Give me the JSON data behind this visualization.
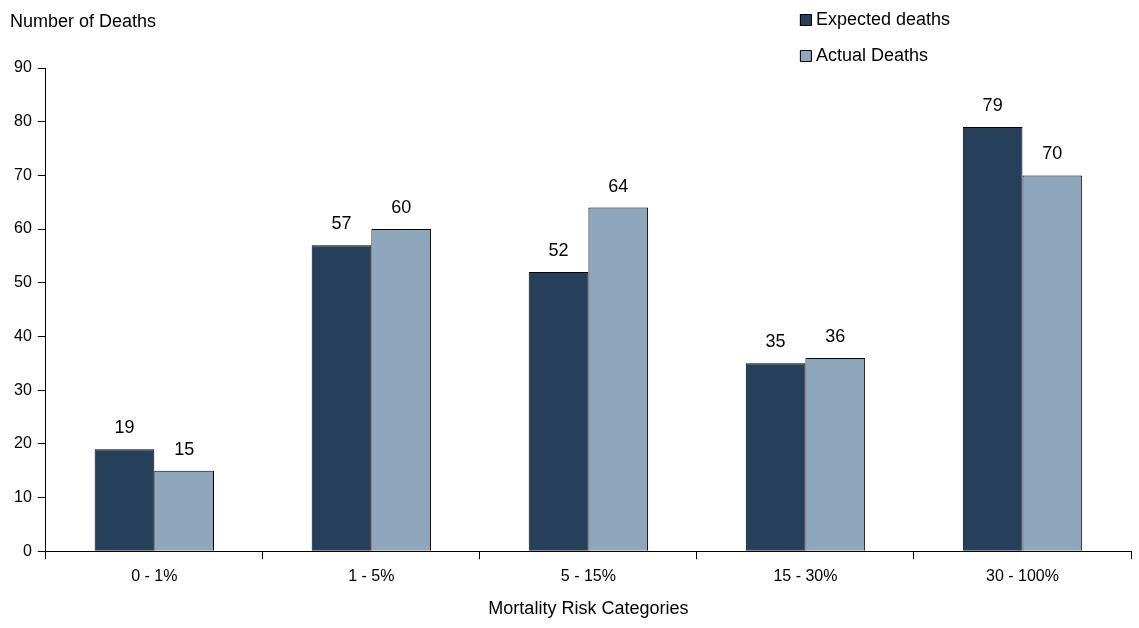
{
  "chart_data": {
    "type": "bar",
    "xlabel": "Mortality Risk Categories",
    "ylabel": "Number of Deaths",
    "categories": [
      "0 - 1%",
      "1 - 5%",
      "5 - 15%",
      "15 - 30%",
      "30 - 100%"
    ],
    "series": [
      {
        "name": "Expected deaths",
        "color": "#263f5a",
        "values": [
          19,
          57,
          52,
          35,
          79
        ]
      },
      {
        "name": "Actual Deaths",
        "color": "#8fa7bd",
        "values": [
          15,
          60,
          64,
          36,
          70
        ]
      }
    ],
    "ylim": [
      0,
      90
    ],
    "yticks": [
      0,
      10,
      20,
      30,
      40,
      50,
      60,
      70,
      80,
      90
    ],
    "grid": false,
    "legend": "top right",
    "data_labels": true
  }
}
